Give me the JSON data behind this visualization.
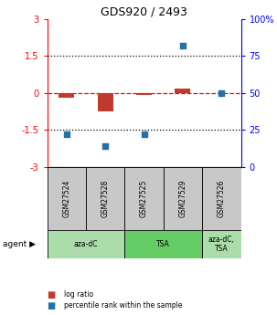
{
  "title": "GDS920 / 2493",
  "samples": [
    "GSM27524",
    "GSM27528",
    "GSM27525",
    "GSM27529",
    "GSM27526"
  ],
  "log_ratio": [
    -0.18,
    -0.75,
    -0.08,
    0.18,
    0.0
  ],
  "percentile_rank": [
    22,
    14,
    22,
    82,
    50
  ],
  "ylim_left": [
    -3,
    3
  ],
  "ylim_right": [
    0,
    100
  ],
  "yticks_left": [
    -3,
    -1.5,
    0,
    1.5,
    3
  ],
  "yticks_right": [
    0,
    25,
    50,
    75,
    100
  ],
  "yticklabels_left": [
    "-3",
    "-1.5",
    "0",
    "1.5",
    "3"
  ],
  "yticklabels_right": [
    "0",
    "25",
    "50",
    "75",
    "100%"
  ],
  "bar_color": "#c0392b",
  "scatter_color": "#2471a3",
  "agent_groups": [
    {
      "label": "aza-dC",
      "span": [
        0,
        2
      ],
      "color": "#aaddaa"
    },
    {
      "label": "TSA",
      "span": [
        2,
        4
      ],
      "color": "#66cc66"
    },
    {
      "label": "aza-dC,\nTSA",
      "span": [
        4,
        5
      ],
      "color": "#aaddaa"
    }
  ],
  "sample_box_color": "#c8c8c8",
  "legend_items": [
    {
      "color": "#c0392b",
      "label": "log ratio"
    },
    {
      "color": "#2471a3",
      "label": "percentile rank within the sample"
    }
  ]
}
